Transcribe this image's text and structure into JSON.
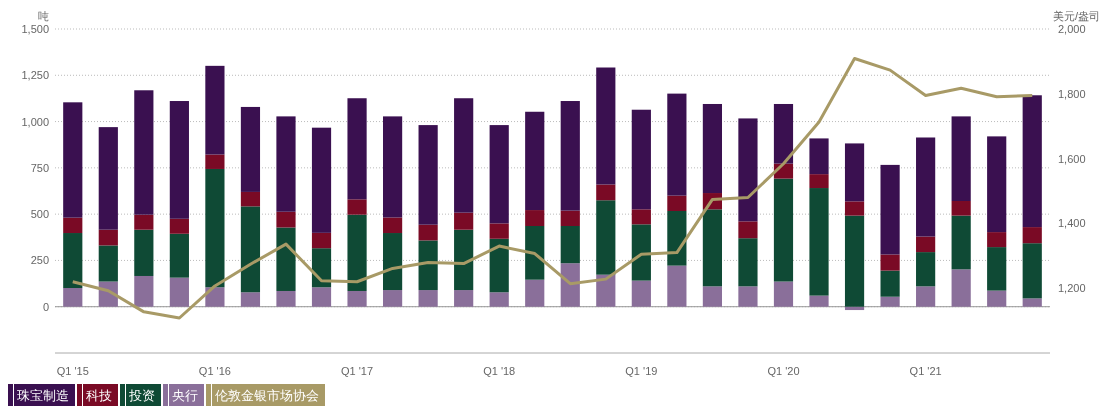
{
  "chart_data": {
    "type": "bar",
    "stacked": true,
    "ylabel": "吨",
    "y2label": "美元/盎司",
    "categories": [
      "Q1 '15",
      null,
      null,
      null,
      "Q1 '16",
      null,
      null,
      null,
      "Q1 '17",
      null,
      null,
      null,
      "Q1 '18",
      null,
      null,
      null,
      "Q1 '19",
      null,
      null,
      null,
      "Q1 '20",
      null,
      null,
      null,
      "Q1 '21",
      null,
      null,
      null
    ],
    "series": [
      {
        "name": "央行",
        "color": "#8a6f9a",
        "values": [
          101,
          136,
          166,
          157,
          105,
          78,
          85,
          105,
          85,
          90,
          90,
          90,
          78,
          146,
          235,
          173,
          141,
          222,
          110,
          110,
          136,
          60,
          -18,
          54,
          110,
          202,
          87,
          45
        ]
      },
      {
        "name": "投资",
        "color": "#0f4a35",
        "values": [
          297,
          195,
          250,
          237,
          639,
          464,
          343,
          211,
          412,
          308,
          268,
          326,
          289,
          290,
          201,
          402,
          304,
          295,
          416,
          260,
          556,
          581,
          492,
          141,
          185,
          290,
          235,
          298
        ]
      },
      {
        "name": "科技",
        "color": "#7a0a25",
        "values": [
          83,
          85,
          81,
          81,
          78,
          78,
          85,
          83,
          83,
          84,
          85,
          92,
          83,
          86,
          83,
          85,
          81,
          83,
          88,
          91,
          81,
          75,
          77,
          87,
          84,
          79,
          81,
          87
        ]
      },
      {
        "name": "珠宝制造",
        "color": "#3a1050",
        "values": [
          623,
          554,
          672,
          636,
          479,
          459,
          515,
          568,
          546,
          546,
          538,
          618,
          531,
          531,
          592,
          632,
          538,
          551,
          481,
          556,
          322,
          193,
          313,
          484,
          535,
          457,
          517,
          712
        ]
      },
      {
        "name": "伦敦金银市场协会",
        "type": "line",
        "axis": "y2",
        "color": "#a89a66",
        "values": [
          1220,
          1192,
          1127,
          1108,
          1207,
          1274,
          1336,
          1223,
          1220,
          1261,
          1279,
          1276,
          1330,
          1307,
          1214,
          1228,
          1305,
          1310,
          1474,
          1480,
          1584,
          1713,
          1909,
          1873,
          1795,
          1817,
          1791,
          1795
        ]
      }
    ],
    "ylim": [
      -250,
      1500
    ],
    "yticks": [
      0,
      {
        "value": 250,
        "label": "250"
      },
      {
        "value": 500,
        "label": "500"
      },
      {
        "value": 750,
        "label": "750"
      },
      {
        "value": 1000,
        "label": "1,000"
      },
      {
        "value": 1250,
        "label": "1,250"
      },
      {
        "value": 1500,
        "label": "1,500"
      }
    ],
    "y2lim": [
      1000,
      2000
    ],
    "y2ticks": [
      {
        "value": 1200,
        "label": "1,200"
      },
      {
        "value": 1400,
        "label": "1,400"
      },
      {
        "value": 1600,
        "label": "1,600"
      },
      {
        "value": 1800,
        "label": "1,800"
      },
      {
        "value": 2000,
        "label": "2,000"
      }
    ],
    "grid": "y",
    "legend": "bottom left"
  }
}
